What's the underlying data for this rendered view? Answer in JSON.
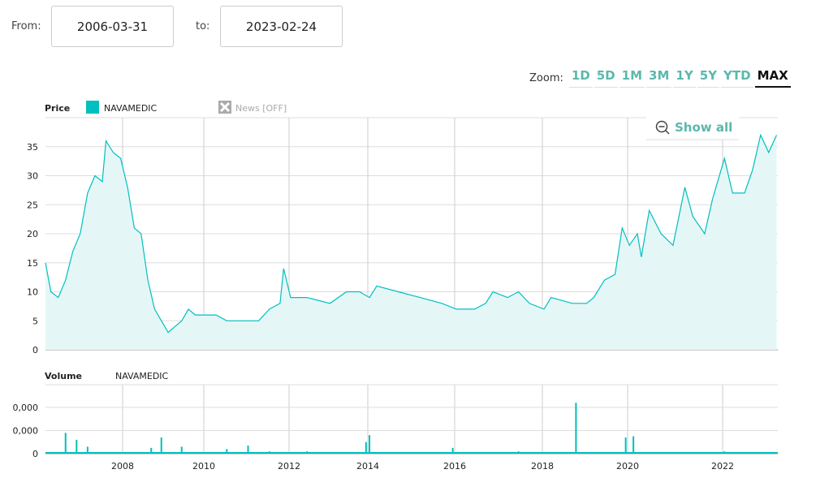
{
  "range": {
    "from_label": "From:",
    "from": "2006-03-31",
    "to_label": "to:",
    "to": "2023-02-24"
  },
  "zoom": {
    "label": "Zoom:",
    "options": [
      "1D",
      "5D",
      "1M",
      "3M",
      "1Y",
      "5Y",
      "YTD",
      "MAX"
    ],
    "active": "MAX"
  },
  "legend": {
    "price_title": "Price",
    "series": "NAVAMEDIC",
    "news": "News [OFF]",
    "volume_title": "Volume",
    "volume_series": "NAVAMEDIC"
  },
  "show_all": "Show all",
  "colors": {
    "series": "#00bfbf",
    "fill": "#e4f7f6",
    "accent": "#5bb8ad"
  },
  "chart_data": [
    {
      "type": "area",
      "title": "Price",
      "series": [
        {
          "name": "NAVAMEDIC",
          "points": [
            [
              "2006-03",
              15
            ],
            [
              "2006-05",
              10
            ],
            [
              "2006-07",
              9
            ],
            [
              "2006-09",
              12
            ],
            [
              "2006-11",
              17
            ],
            [
              "2007-01",
              20
            ],
            [
              "2007-03",
              27
            ],
            [
              "2007-05",
              30
            ],
            [
              "2007-07",
              29
            ],
            [
              "2007-08",
              36
            ],
            [
              "2007-10",
              34
            ],
            [
              "2007-12",
              33
            ],
            [
              "2008-02",
              28
            ],
            [
              "2008-04",
              21
            ],
            [
              "2008-06",
              20
            ],
            [
              "2008-08",
              12
            ],
            [
              "2008-10",
              7
            ],
            [
              "2008-12",
              5
            ],
            [
              "2009-02",
              3
            ],
            [
              "2009-04",
              4
            ],
            [
              "2009-06",
              5
            ],
            [
              "2009-08",
              7
            ],
            [
              "2009-10",
              6
            ],
            [
              "2010-01",
              6
            ],
            [
              "2010-04",
              6
            ],
            [
              "2010-07",
              5
            ],
            [
              "2010-10",
              5
            ],
            [
              "2011-01",
              5
            ],
            [
              "2011-04",
              5
            ],
            [
              "2011-07",
              7
            ],
            [
              "2011-10",
              8
            ],
            [
              "2011-11",
              14
            ],
            [
              "2012-01",
              9
            ],
            [
              "2012-06",
              9
            ],
            [
              "2013-01",
              8
            ],
            [
              "2013-06",
              10
            ],
            [
              "2013-10",
              10
            ],
            [
              "2014-01",
              9
            ],
            [
              "2014-03",
              11
            ],
            [
              "2014-09",
              10
            ],
            [
              "2015-03",
              9
            ],
            [
              "2015-09",
              8
            ],
            [
              "2016-01",
              7
            ],
            [
              "2016-06",
              7
            ],
            [
              "2016-09",
              8
            ],
            [
              "2016-11",
              10
            ],
            [
              "2017-03",
              9
            ],
            [
              "2017-06",
              10
            ],
            [
              "2017-09",
              8
            ],
            [
              "2018-01",
              7
            ],
            [
              "2018-03",
              9
            ],
            [
              "2018-09",
              8
            ],
            [
              "2019-01",
              8
            ],
            [
              "2019-03",
              9
            ],
            [
              "2019-06",
              12
            ],
            [
              "2019-09",
              13
            ],
            [
              "2019-11",
              21
            ],
            [
              "2020-01",
              18
            ],
            [
              "2020-03",
              20
            ],
            [
              "2020-04",
              16
            ],
            [
              "2020-06",
              24
            ],
            [
              "2020-09",
              20
            ],
            [
              "2020-12",
              18
            ],
            [
              "2021-03",
              28
            ],
            [
              "2021-05",
              23
            ],
            [
              "2021-08",
              20
            ],
            [
              "2021-10",
              26
            ],
            [
              "2022-01",
              33
            ],
            [
              "2022-03",
              27
            ],
            [
              "2022-06",
              27
            ],
            [
              "2022-08",
              31
            ],
            [
              "2022-10",
              37
            ],
            [
              "2022-12",
              34
            ],
            [
              "2023-02",
              37
            ]
          ]
        }
      ],
      "yticks": [
        0,
        5,
        10,
        15,
        20,
        25,
        30,
        35
      ],
      "ylim": [
        0,
        40
      ],
      "grid": true,
      "xticks": [
        "2008",
        "2010",
        "2012",
        "2014",
        "2016",
        "2018",
        "2020",
        "2022"
      ]
    },
    {
      "type": "bar",
      "title": "Volume",
      "series": [
        {
          "name": "NAVAMEDIC",
          "points": [
            [
              "2006-09",
              0.9
            ],
            [
              "2006-12",
              0.6
            ],
            [
              "2007-03",
              0.3
            ],
            [
              "2008-09",
              0.25
            ],
            [
              "2008-12",
              0.7
            ],
            [
              "2009-06",
              0.3
            ],
            [
              "2010-07",
              0.2
            ],
            [
              "2011-01",
              0.35
            ],
            [
              "2011-07",
              0.1
            ],
            [
              "2012-06",
              0.1
            ],
            [
              "2013-12",
              0.5
            ],
            [
              "2014-01",
              0.8
            ],
            [
              "2015-12",
              0.25
            ],
            [
              "2017-06",
              0.1
            ],
            [
              "2018-10",
              2.2
            ],
            [
              "2019-12",
              0.7
            ],
            [
              "2020-02",
              0.75
            ],
            [
              "2022-01",
              0.1
            ]
          ]
        }
      ],
      "ytick_labels": [
        "0",
        "0,000",
        "0,000"
      ]
    }
  ]
}
